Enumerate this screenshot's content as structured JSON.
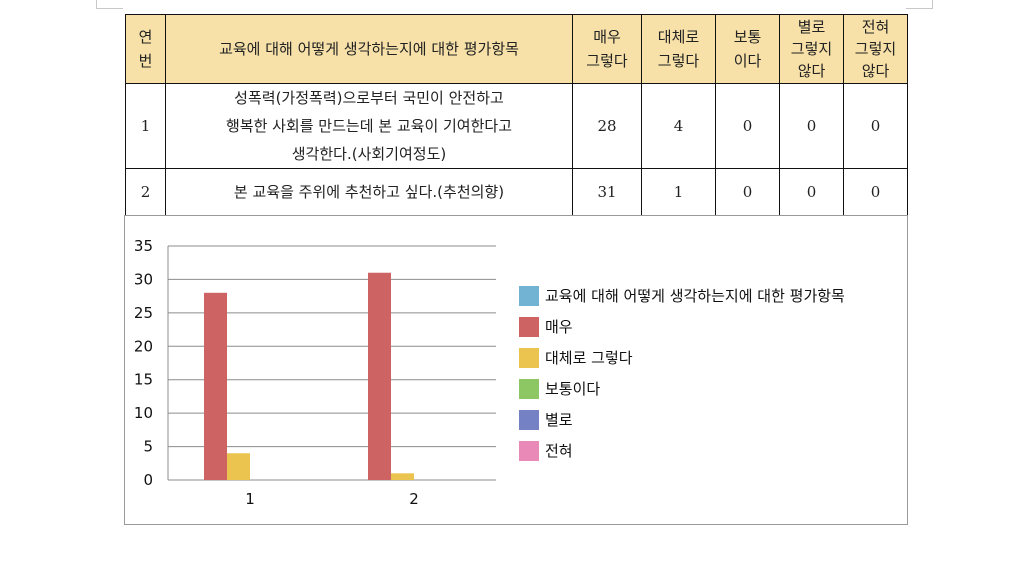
{
  "table": {
    "headers": {
      "no": [
        "연",
        "번"
      ],
      "item": "교육에 대해 어떻게 생각하는지에 대한 평가항목",
      "opt1": [
        "매우",
        "그렇다"
      ],
      "opt2": [
        "대체로",
        "그렇다"
      ],
      "opt3": [
        "보통",
        "이다"
      ],
      "opt4": [
        "별로",
        "그렇지",
        "않다"
      ],
      "opt5": [
        "전혀",
        "그렇지",
        "않다"
      ]
    },
    "rows": [
      {
        "no": "1",
        "item_lines": [
          "성폭력(가정폭력)으로부터 국민이 안전하고",
          "행복한 사회를 만드는데 본 교육이 기여한다고",
          "생각한다.(사회기여정도)"
        ],
        "values": [
          "28",
          "4",
          "0",
          "0",
          "0"
        ]
      },
      {
        "no": "2",
        "item_lines": [
          "본 교육을 주위에 추천하고 싶다.(추천의향)"
        ],
        "values": [
          "31",
          "1",
          "0",
          "0",
          "0"
        ]
      }
    ]
  },
  "chart_data": {
    "type": "bar",
    "categories": [
      "1",
      "2"
    ],
    "series": [
      {
        "name": "교육에 대해 어떻게 생각하는지에 대한 평가항목",
        "values": [
          0,
          0
        ],
        "color": "#72b3d3"
      },
      {
        "name": "매우",
        "values": [
          28,
          31
        ],
        "color": "#cd6363"
      },
      {
        "name": "대체로 그렇다",
        "values": [
          4,
          1
        ],
        "color": "#ebc34f"
      },
      {
        "name": "보통이다",
        "values": [
          0,
          0
        ],
        "color": "#8dc764"
      },
      {
        "name": "별로",
        "values": [
          0,
          0
        ],
        "color": "#7482c5"
      },
      {
        "name": "전혀",
        "values": [
          0,
          0
        ],
        "color": "#e889b7"
      }
    ],
    "ylim": [
      0,
      35
    ],
    "yticks": [
      "0",
      "5",
      "10",
      "15",
      "20",
      "25",
      "30",
      "35"
    ],
    "grid": true,
    "legend_position": "right"
  }
}
